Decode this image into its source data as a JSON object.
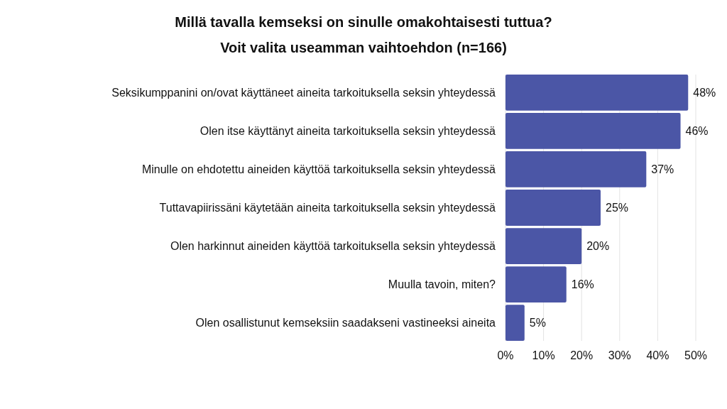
{
  "chart_data": {
    "type": "bar",
    "orientation": "horizontal",
    "title": "Millä tavalla kemseksi on sinulle omakohtaisesti tuttua?",
    "subtitle": "Voit valita useamman vaihtoehdon (n=166)",
    "categories": [
      "Seksikumppanini on/ovat käyttäneet aineita tarkoituksella seksin yhteydessä",
      "Olen itse käyttänyt aineita tarkoituksella seksin yhteydessä",
      "Minulle on ehdotettu aineiden käyttöä tarkoituksella seksin yhteydessä",
      "Tuttavapiirissäni käytetään aineita tarkoituksella seksin yhteydessä",
      "Olen harkinnut aineiden käyttöä tarkoituksella seksin yhteydessä",
      "Muulla tavoin, miten?",
      "Olen osallistunut kemseksiin saadakseni vastineeksi aineita"
    ],
    "values": [
      48,
      46,
      37,
      25,
      20,
      16,
      5
    ],
    "value_labels": [
      "48%",
      "46%",
      "37%",
      "25%",
      "20%",
      "16%",
      "5%"
    ],
    "color": "#4b56a6",
    "xlim": [
      0,
      50
    ],
    "xticks": [
      {
        "value": 0,
        "label": "0%"
      },
      {
        "value": 10,
        "label": "10%"
      },
      {
        "value": 20,
        "label": "20%"
      },
      {
        "value": 30,
        "label": "30%"
      },
      {
        "value": 40,
        "label": "40%"
      },
      {
        "value": 50,
        "label": "50%"
      }
    ],
    "grid": "x"
  }
}
